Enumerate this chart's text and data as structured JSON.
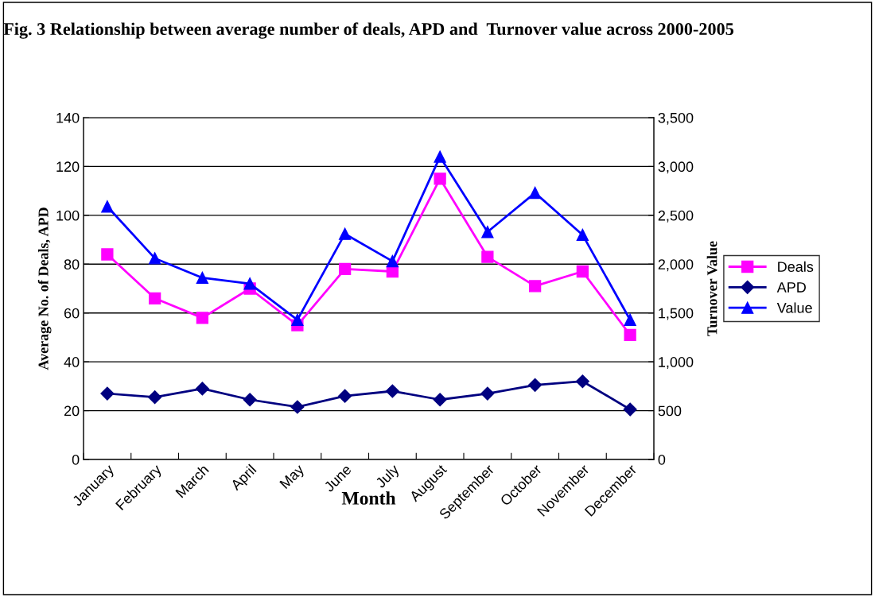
{
  "chart_data": {
    "type": "line",
    "title": "Fig. 3 Relationship between average number of deals, APD and  Turnover value across 2000-2005",
    "xlabel": "Month",
    "ylabel": "Average No. of Deals, APD",
    "y2label": "Turnover Value",
    "categories": [
      "January",
      "February",
      "March",
      "April",
      "May",
      "June",
      "July",
      "August",
      "September",
      "October",
      "November",
      "December"
    ],
    "series": [
      {
        "name": "Deals",
        "color": "#ff00ff",
        "marker": "square",
        "values": [
          84,
          66,
          58,
          70,
          55,
          78,
          77,
          115,
          83,
          71,
          77,
          51
        ]
      },
      {
        "name": "APD",
        "color": "#000080",
        "marker": "diamond",
        "values": [
          27,
          25.5,
          29,
          24.5,
          21.5,
          26,
          28,
          24.5,
          27,
          30.5,
          32,
          20.5
        ]
      },
      {
        "name": "Value",
        "color": "#0000ff",
        "marker": "triangle",
        "axis": "y2",
        "values": [
          2590,
          2060,
          1860,
          1800,
          1430,
          2310,
          2030,
          3100,
          2330,
          2730,
          2300,
          1430
        ]
      }
    ],
    "ylim": [
      0,
      140
    ],
    "yticks": [
      0,
      20,
      40,
      60,
      80,
      100,
      120,
      140
    ],
    "y2lim": [
      0,
      3500
    ],
    "y2ticks": [
      0,
      {
        "value": 500,
        "label": "500"
      },
      {
        "value": 1000,
        "label": "1,000"
      },
      {
        "value": 1500,
        "label": "1,500"
      },
      {
        "value": 2000,
        "label": "2,000"
      },
      {
        "value": 2500,
        "label": "2,500"
      },
      {
        "value": 3000,
        "label": "3,000"
      },
      {
        "value": 3500,
        "label": "3,500"
      }
    ],
    "grid": "y",
    "legend": "right",
    "line_style": "solid"
  }
}
